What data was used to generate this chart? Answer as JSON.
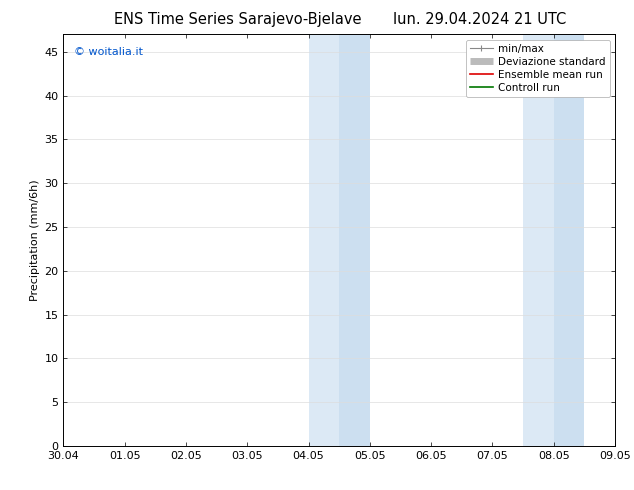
{
  "title_left": "ENS Time Series Sarajevo-Bjelave",
  "title_right": "lun. 29.04.2024 21 UTC",
  "ylabel": "Precipitation (mm/6h)",
  "watermark": "© woitalia.it",
  "watermark_color": "#0055cc",
  "ylim": [
    0,
    47
  ],
  "yticks": [
    0,
    5,
    10,
    15,
    20,
    25,
    30,
    35,
    40,
    45
  ],
  "xtick_labels": [
    "30.04",
    "01.05",
    "02.05",
    "03.05",
    "04.05",
    "05.05",
    "06.05",
    "07.05",
    "08.05",
    "09.05"
  ],
  "xtick_positions": [
    0,
    1,
    2,
    3,
    4,
    5,
    6,
    7,
    8,
    9
  ],
  "shaded_bands": [
    {
      "xstart": 4.0,
      "xend": 4.5,
      "color": "#dce9f5"
    },
    {
      "xstart": 4.5,
      "xend": 5.0,
      "color": "#ccdff0"
    },
    {
      "xstart": 7.5,
      "xend": 8.0,
      "color": "#dce9f5"
    },
    {
      "xstart": 8.0,
      "xend": 8.5,
      "color": "#ccdff0"
    }
  ],
  "bg_color": "#ffffff",
  "plot_bg_color": "#ffffff",
  "grid_color": "#cccccc",
  "border_color": "#000000",
  "legend_labels": [
    "min/max",
    "Deviazione standard",
    "Ensemble mean run",
    "Controll run"
  ],
  "legend_colors": [
    "#888888",
    "#bbbbbb",
    "#dd0000",
    "#007700"
  ],
  "font_size": 8,
  "title_font_size": 10.5
}
